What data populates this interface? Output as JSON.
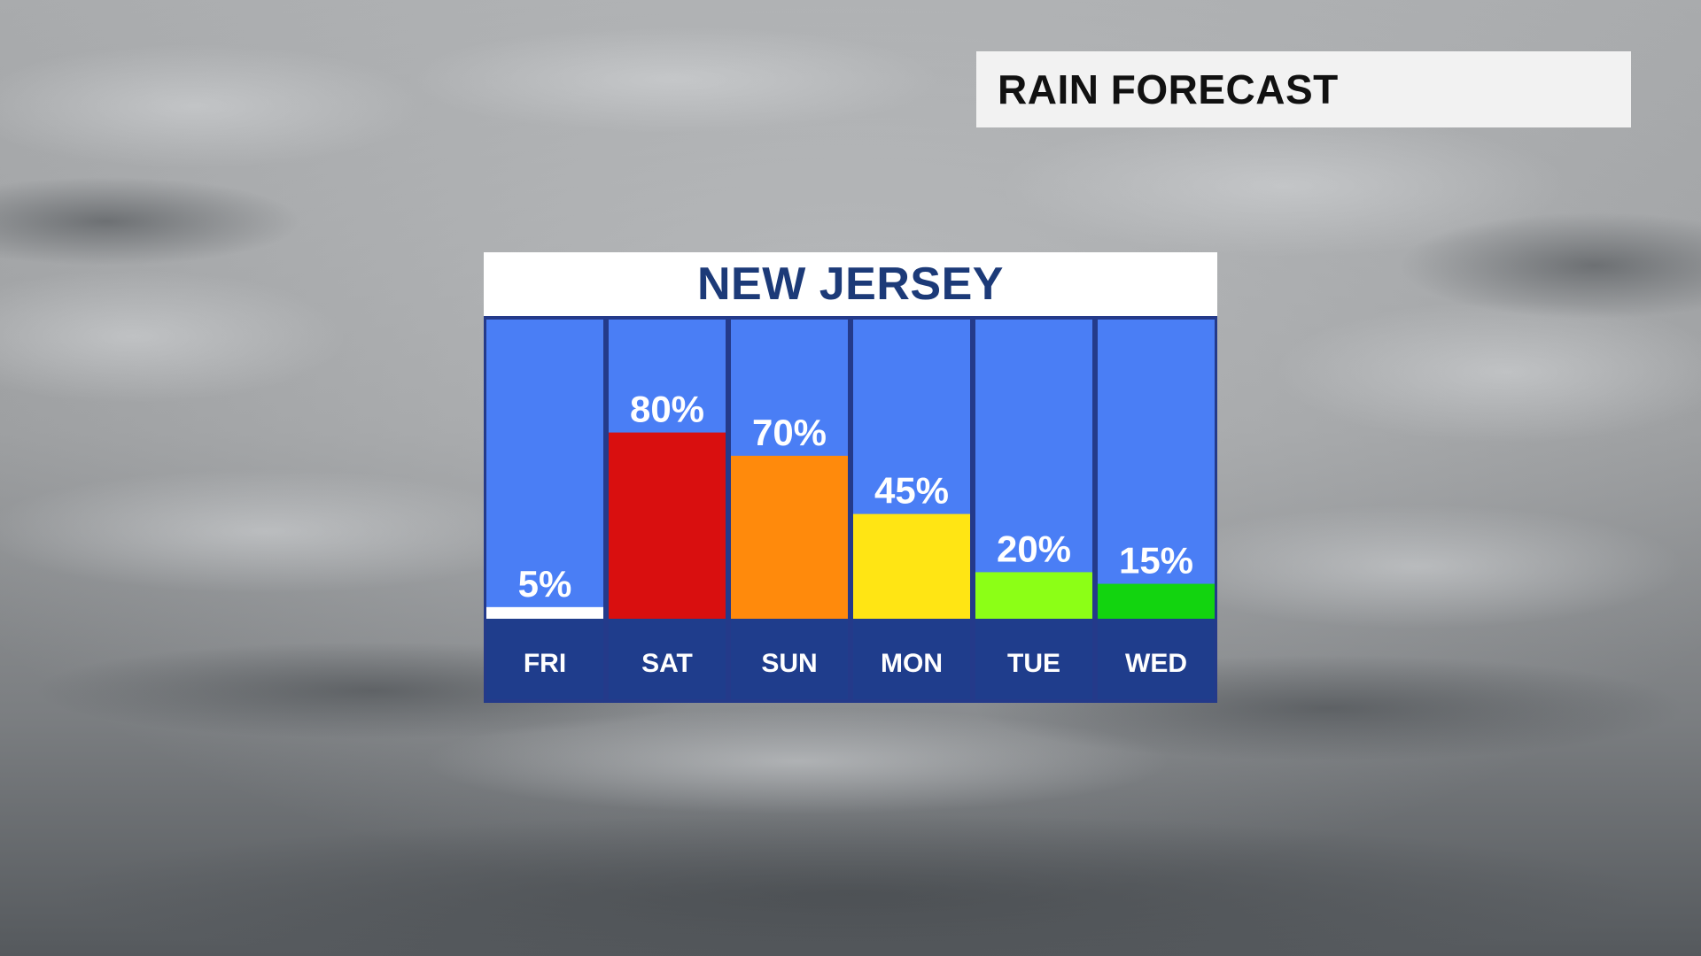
{
  "header": {
    "title": "RAIN FORECAST"
  },
  "chart_data": {
    "type": "bar",
    "title": "NEW JERSEY",
    "categories": [
      "FRI",
      "SAT",
      "SUN",
      "MON",
      "TUE",
      "WED"
    ],
    "values": [
      5,
      80,
      70,
      45,
      20,
      15
    ],
    "value_labels": [
      "5%",
      "80%",
      "70%",
      "45%",
      "20%",
      "15%"
    ],
    "bar_colors": [
      "#ffffff",
      "#d90f0f",
      "#ff8a0c",
      "#ffe514",
      "#8cff16",
      "#12d40f"
    ],
    "ylim": [
      0,
      100
    ],
    "xlabel": "",
    "ylabel": "",
    "grid": false
  },
  "colors": {
    "column_background": "#4a7ef5",
    "column_divider": "#243a8a",
    "day_band": "#1f3d8c",
    "panel_title": "#1c3a78",
    "title_box": "#f2f2f2"
  }
}
